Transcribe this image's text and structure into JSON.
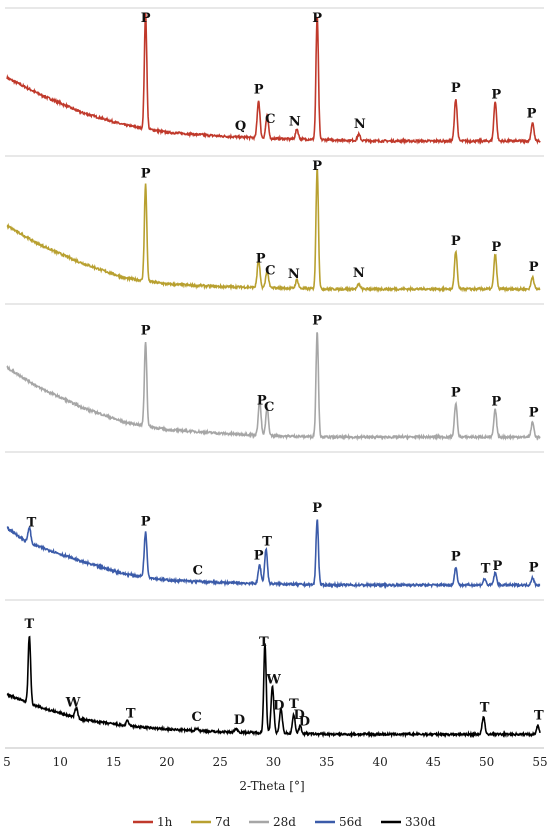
{
  "chart_data": {
    "type": "line",
    "xlabel": "2-Theta [°]",
    "ylabel": "",
    "xlim": [
      5,
      55
    ],
    "xticks": [
      "5",
      "10",
      "15",
      "20",
      "25",
      "30",
      "35",
      "40",
      "45",
      "50",
      "55"
    ],
    "grid": "horizontal separators between stacked panels",
    "legend_position": "bottom",
    "series": [
      {
        "name": "1h",
        "color": "#c0392b",
        "baseline": [
          [
            5,
            0.55
          ],
          [
            8,
            0.42
          ],
          [
            12,
            0.27
          ],
          [
            16,
            0.17
          ],
          [
            20,
            0.11
          ],
          [
            25,
            0.08
          ],
          [
            30,
            0.06
          ],
          [
            35,
            0.05
          ],
          [
            40,
            0.04
          ],
          [
            45,
            0.04
          ],
          [
            50,
            0.04
          ],
          [
            55,
            0.04
          ]
        ],
        "peaks": [
          [
            18.0,
            0.93
          ],
          [
            28.6,
            0.3
          ],
          [
            29.4,
            0.18
          ],
          [
            32.2,
            0.08
          ],
          [
            34.1,
            1.0
          ],
          [
            38.0,
            0.05
          ],
          [
            47.1,
            0.34
          ],
          [
            50.8,
            0.32
          ],
          [
            54.3,
            0.15
          ]
        ],
        "labels": [
          {
            "x": 18.0,
            "text": "P"
          },
          {
            "x": 26.9,
            "text": "Q"
          },
          {
            "x": 28.6,
            "text": "P"
          },
          {
            "x": 29.7,
            "text": "C"
          },
          {
            "x": 32.0,
            "text": "N"
          },
          {
            "x": 34.1,
            "text": "P"
          },
          {
            "x": 38.1,
            "text": "N"
          },
          {
            "x": 47.1,
            "text": "P"
          },
          {
            "x": 50.9,
            "text": "P"
          },
          {
            "x": 54.2,
            "text": "P"
          }
        ]
      },
      {
        "name": "7d",
        "color": "#b8a030",
        "baseline": [
          [
            5,
            0.55
          ],
          [
            8,
            0.4
          ],
          [
            12,
            0.25
          ],
          [
            16,
            0.13
          ],
          [
            20,
            0.08
          ],
          [
            25,
            0.06
          ],
          [
            30,
            0.05
          ],
          [
            35,
            0.04
          ],
          [
            40,
            0.04
          ],
          [
            45,
            0.04
          ],
          [
            50,
            0.04
          ],
          [
            55,
            0.04
          ]
        ],
        "peaks": [
          [
            18.0,
            0.78
          ],
          [
            28.6,
            0.22
          ],
          [
            29.4,
            0.14
          ],
          [
            32.2,
            0.07
          ],
          [
            34.1,
            0.98
          ],
          [
            38.0,
            0.04
          ],
          [
            47.1,
            0.3
          ],
          [
            50.8,
            0.28
          ],
          [
            54.3,
            0.1
          ]
        ],
        "labels": [
          {
            "x": 18.0,
            "text": "P"
          },
          {
            "x": 28.8,
            "text": "P"
          },
          {
            "x": 29.7,
            "text": "C"
          },
          {
            "x": 31.9,
            "text": "N"
          },
          {
            "x": 34.1,
            "text": "P"
          },
          {
            "x": 38.0,
            "text": "N"
          },
          {
            "x": 47.1,
            "text": "P"
          },
          {
            "x": 50.9,
            "text": "P"
          },
          {
            "x": 54.4,
            "text": "P"
          }
        ]
      },
      {
        "name": "28d",
        "color": "#a6a6a6",
        "baseline": [
          [
            5,
            0.6
          ],
          [
            8,
            0.44
          ],
          [
            12,
            0.28
          ],
          [
            16,
            0.16
          ],
          [
            20,
            0.1
          ],
          [
            25,
            0.07
          ],
          [
            30,
            0.05
          ],
          [
            35,
            0.04
          ],
          [
            40,
            0.04
          ],
          [
            45,
            0.04
          ],
          [
            50,
            0.04
          ],
          [
            55,
            0.04
          ]
        ],
        "peaks": [
          [
            18.0,
            0.68
          ],
          [
            28.7,
            0.28
          ],
          [
            29.4,
            0.22
          ],
          [
            34.1,
            0.85
          ],
          [
            47.1,
            0.27
          ],
          [
            50.8,
            0.22
          ],
          [
            54.3,
            0.12
          ]
        ],
        "labels": [
          {
            "x": 18.0,
            "text": "P"
          },
          {
            "x": 28.9,
            "text": "P"
          },
          {
            "x": 29.6,
            "text": "C"
          },
          {
            "x": 34.1,
            "text": "P"
          },
          {
            "x": 47.1,
            "text": "P"
          },
          {
            "x": 50.9,
            "text": "P"
          },
          {
            "x": 54.4,
            "text": "P"
          }
        ]
      },
      {
        "name": "56d",
        "color": "#3b5ba9",
        "baseline": [
          [
            5,
            0.5
          ],
          [
            7,
            0.38
          ],
          [
            12,
            0.23
          ],
          [
            16,
            0.13
          ],
          [
            20,
            0.08
          ],
          [
            25,
            0.06
          ],
          [
            30,
            0.05
          ],
          [
            35,
            0.04
          ],
          [
            40,
            0.04
          ],
          [
            45,
            0.04
          ],
          [
            50,
            0.04
          ],
          [
            55,
            0.04
          ]
        ],
        "peaks": [
          [
            7.1,
            0.13
          ],
          [
            18.0,
            0.36
          ],
          [
            28.7,
            0.15
          ],
          [
            29.3,
            0.28
          ],
          [
            34.1,
            0.53
          ],
          [
            47.1,
            0.14
          ],
          [
            49.8,
            0.05
          ],
          [
            50.8,
            0.1
          ],
          [
            54.3,
            0.06
          ]
        ],
        "labels": [
          {
            "x": 7.3,
            "text": "T"
          },
          {
            "x": 18.0,
            "text": "P"
          },
          {
            "x": 22.9,
            "text": "C"
          },
          {
            "x": 28.6,
            "text": "P"
          },
          {
            "x": 29.4,
            "text": "T"
          },
          {
            "x": 34.1,
            "text": "P"
          },
          {
            "x": 47.1,
            "text": "P"
          },
          {
            "x": 49.9,
            "text": "T"
          },
          {
            "x": 51.0,
            "text": "P"
          },
          {
            "x": 54.4,
            "text": "P"
          }
        ]
      },
      {
        "name": "330d",
        "color": "#000000",
        "baseline": [
          [
            5,
            0.35
          ],
          [
            8,
            0.25
          ],
          [
            12,
            0.15
          ],
          [
            16,
            0.1
          ],
          [
            20,
            0.07
          ],
          [
            25,
            0.05
          ],
          [
            30,
            0.04
          ],
          [
            35,
            0.03
          ],
          [
            40,
            0.03
          ],
          [
            45,
            0.03
          ],
          [
            50,
            0.03
          ],
          [
            55,
            0.03
          ]
        ],
        "peaks": [
          [
            7.1,
            0.55
          ],
          [
            11.5,
            0.08
          ],
          [
            16.3,
            0.04
          ],
          [
            22.8,
            0.02
          ],
          [
            26.5,
            0.03
          ],
          [
            29.2,
            0.72
          ],
          [
            29.9,
            0.38
          ],
          [
            30.7,
            0.2
          ],
          [
            31.9,
            0.15
          ],
          [
            32.5,
            0.06
          ],
          [
            49.7,
            0.14
          ],
          [
            54.8,
            0.07
          ]
        ],
        "labels": [
          {
            "x": 7.1,
            "text": "T"
          },
          {
            "x": 11.2,
            "text": "W"
          },
          {
            "x": 16.6,
            "text": "T"
          },
          {
            "x": 22.8,
            "text": "C"
          },
          {
            "x": 26.8,
            "text": "D"
          },
          {
            "x": 29.1,
            "text": "T"
          },
          {
            "x": 30.5,
            "text": "D"
          },
          {
            "x": 30.0,
            "text": "W"
          },
          {
            "x": 32.4,
            "text": "D"
          },
          {
            "x": 31.9,
            "text": "T"
          },
          {
            "x": 32.9,
            "text": "D"
          },
          {
            "x": 49.8,
            "text": "T"
          },
          {
            "x": 54.9,
            "text": "T"
          }
        ]
      }
    ]
  }
}
